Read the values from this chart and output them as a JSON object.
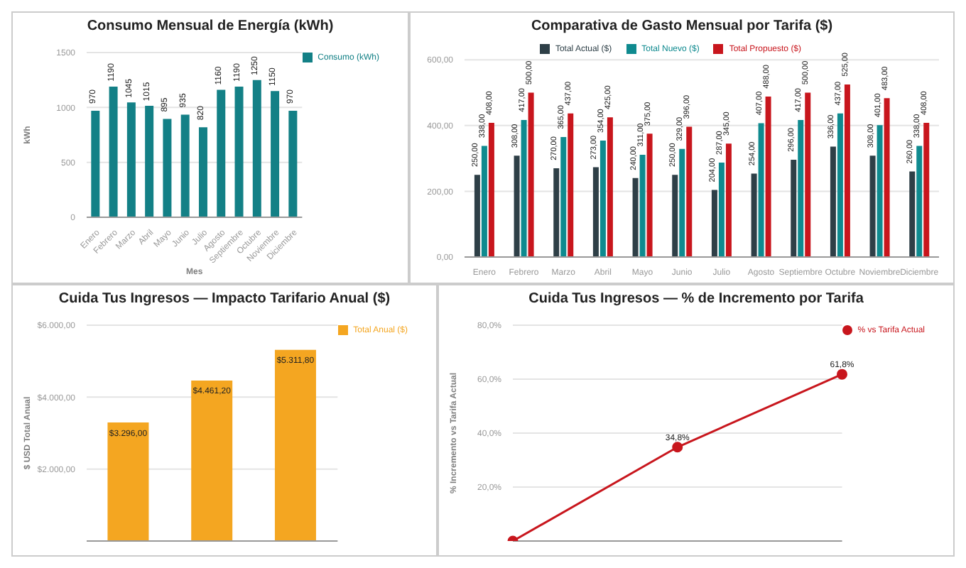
{
  "chart_data": [
    {
      "type": "bar",
      "title": "Consumo Mensual de Energía (kWh)",
      "xlabel": "Mes",
      "ylabel": "kWh",
      "categories": [
        "Enero",
        "Febrero",
        "Marzo",
        "Abril",
        "Mayo",
        "Junio",
        "Julio",
        "Agosto",
        "Septiembre",
        "Octubre",
        "Noviembre",
        "Diciembre"
      ],
      "series": [
        {
          "name": "Consumo (kWh)",
          "color": "#138086",
          "values": [
            970,
            1190,
            1045,
            1015,
            895,
            935,
            820,
            1160,
            1190,
            1250,
            1150,
            970
          ]
        }
      ],
      "ylim": [
        0,
        1500
      ],
      "yticks": [
        0,
        500,
        1000,
        1500
      ],
      "grid": "y",
      "legend": "right",
      "data_labels": true
    },
    {
      "type": "bar",
      "title": "Comparativa de Gasto Mensual por Tarifa ($)",
      "categories": [
        "Enero",
        "Febrero",
        "Marzo",
        "Abril",
        "Mayo",
        "Junio",
        "Julio",
        "Agosto",
        "Septiembre",
        "Octubre",
        "Noviembre",
        "Diciembre"
      ],
      "series": [
        {
          "name": "Total Actual ($)",
          "color": "#2e3f47",
          "values": [
            250,
            308,
            270,
            273,
            240,
            250,
            204,
            254,
            296,
            336,
            308,
            260
          ],
          "value_labels": [
            "250,00",
            "308,00",
            "270,00",
            "273,00",
            "240,00",
            "250,00",
            "204,00",
            "254,00",
            "296,00",
            "336,00",
            "308,00",
            "260,00"
          ]
        },
        {
          "name": "Total Nuevo ($)",
          "color": "#0f8a8f",
          "values": [
            338,
            417,
            365,
            354,
            311,
            329,
            287,
            407,
            417,
            437,
            401,
            338
          ],
          "value_labels": [
            "338,00",
            "417,00",
            "365,00",
            "354,00",
            "311,00",
            "329,00",
            "287,00",
            "407,00",
            "417,00",
            "437,00",
            "401,00",
            "338,00"
          ]
        },
        {
          "name": "Total Propuesto ($)",
          "color": "#c8161d",
          "values": [
            408,
            500,
            437,
            425,
            375,
            396,
            345,
            488,
            500,
            525,
            483,
            408
          ],
          "value_labels": [
            "408,00",
            "500,00",
            "437,00",
            "425,00",
            "375,00",
            "396,00",
            "345,00",
            "488,00",
            "500,00",
            "525,00",
            "483,00",
            "408,00"
          ]
        }
      ],
      "ylim": [
        0,
        600
      ],
      "yticks": [
        {
          "value": 0,
          "label": "0,00"
        },
        {
          "value": 200,
          "label": "200,00"
        },
        {
          "value": 400,
          "label": "400,00"
        },
        {
          "value": 600,
          "label": "600,00"
        }
      ],
      "grid": "y",
      "legend": "top"
    },
    {
      "type": "bar",
      "title": "Cuida Tus Ingresos — Impacto Tarifario Anual ($)",
      "ylabel": "$ USD Total Anual",
      "categories": [
        null,
        null,
        null
      ],
      "series": [
        {
          "name": "Total Anual ($)",
          "color": "#f4a621",
          "values": [
            3296,
            4461.2,
            5311.8
          ],
          "value_labels": [
            "$3.296,00",
            "$4.461,20",
            "$5.311,80"
          ]
        }
      ],
      "ylim": [
        0,
        6000
      ],
      "yticks": [
        {
          "value": 2000,
          "label": "$2.000,00"
        },
        {
          "value": 4000,
          "label": "$4.000,00"
        },
        {
          "value": 6000,
          "label": "$6.000,00"
        }
      ],
      "grid": "y",
      "legend": "top right"
    },
    {
      "type": "line",
      "title": "Cuida Tus Ingresos — % de Incremento por Tarifa",
      "ylabel": "% Incremento vs Tarifa Actual",
      "categories": [
        null,
        null,
        null
      ],
      "series": [
        {
          "name": "% vs Tarifa Actual",
          "color": "#c8161d",
          "values": [
            0,
            34.8,
            61.8
          ],
          "value_labels": [
            null,
            "34,8%",
            "61,8%"
          ]
        }
      ],
      "ylim": [
        0,
        80
      ],
      "yticks": [
        {
          "value": 20,
          "label": "20,0%"
        },
        {
          "value": 40,
          "label": "40,0%"
        },
        {
          "value": 60,
          "label": "60,0%"
        },
        {
          "value": 80,
          "label": "80,0%"
        }
      ],
      "grid": "y",
      "legend": "top right",
      "marker": "circle"
    }
  ]
}
